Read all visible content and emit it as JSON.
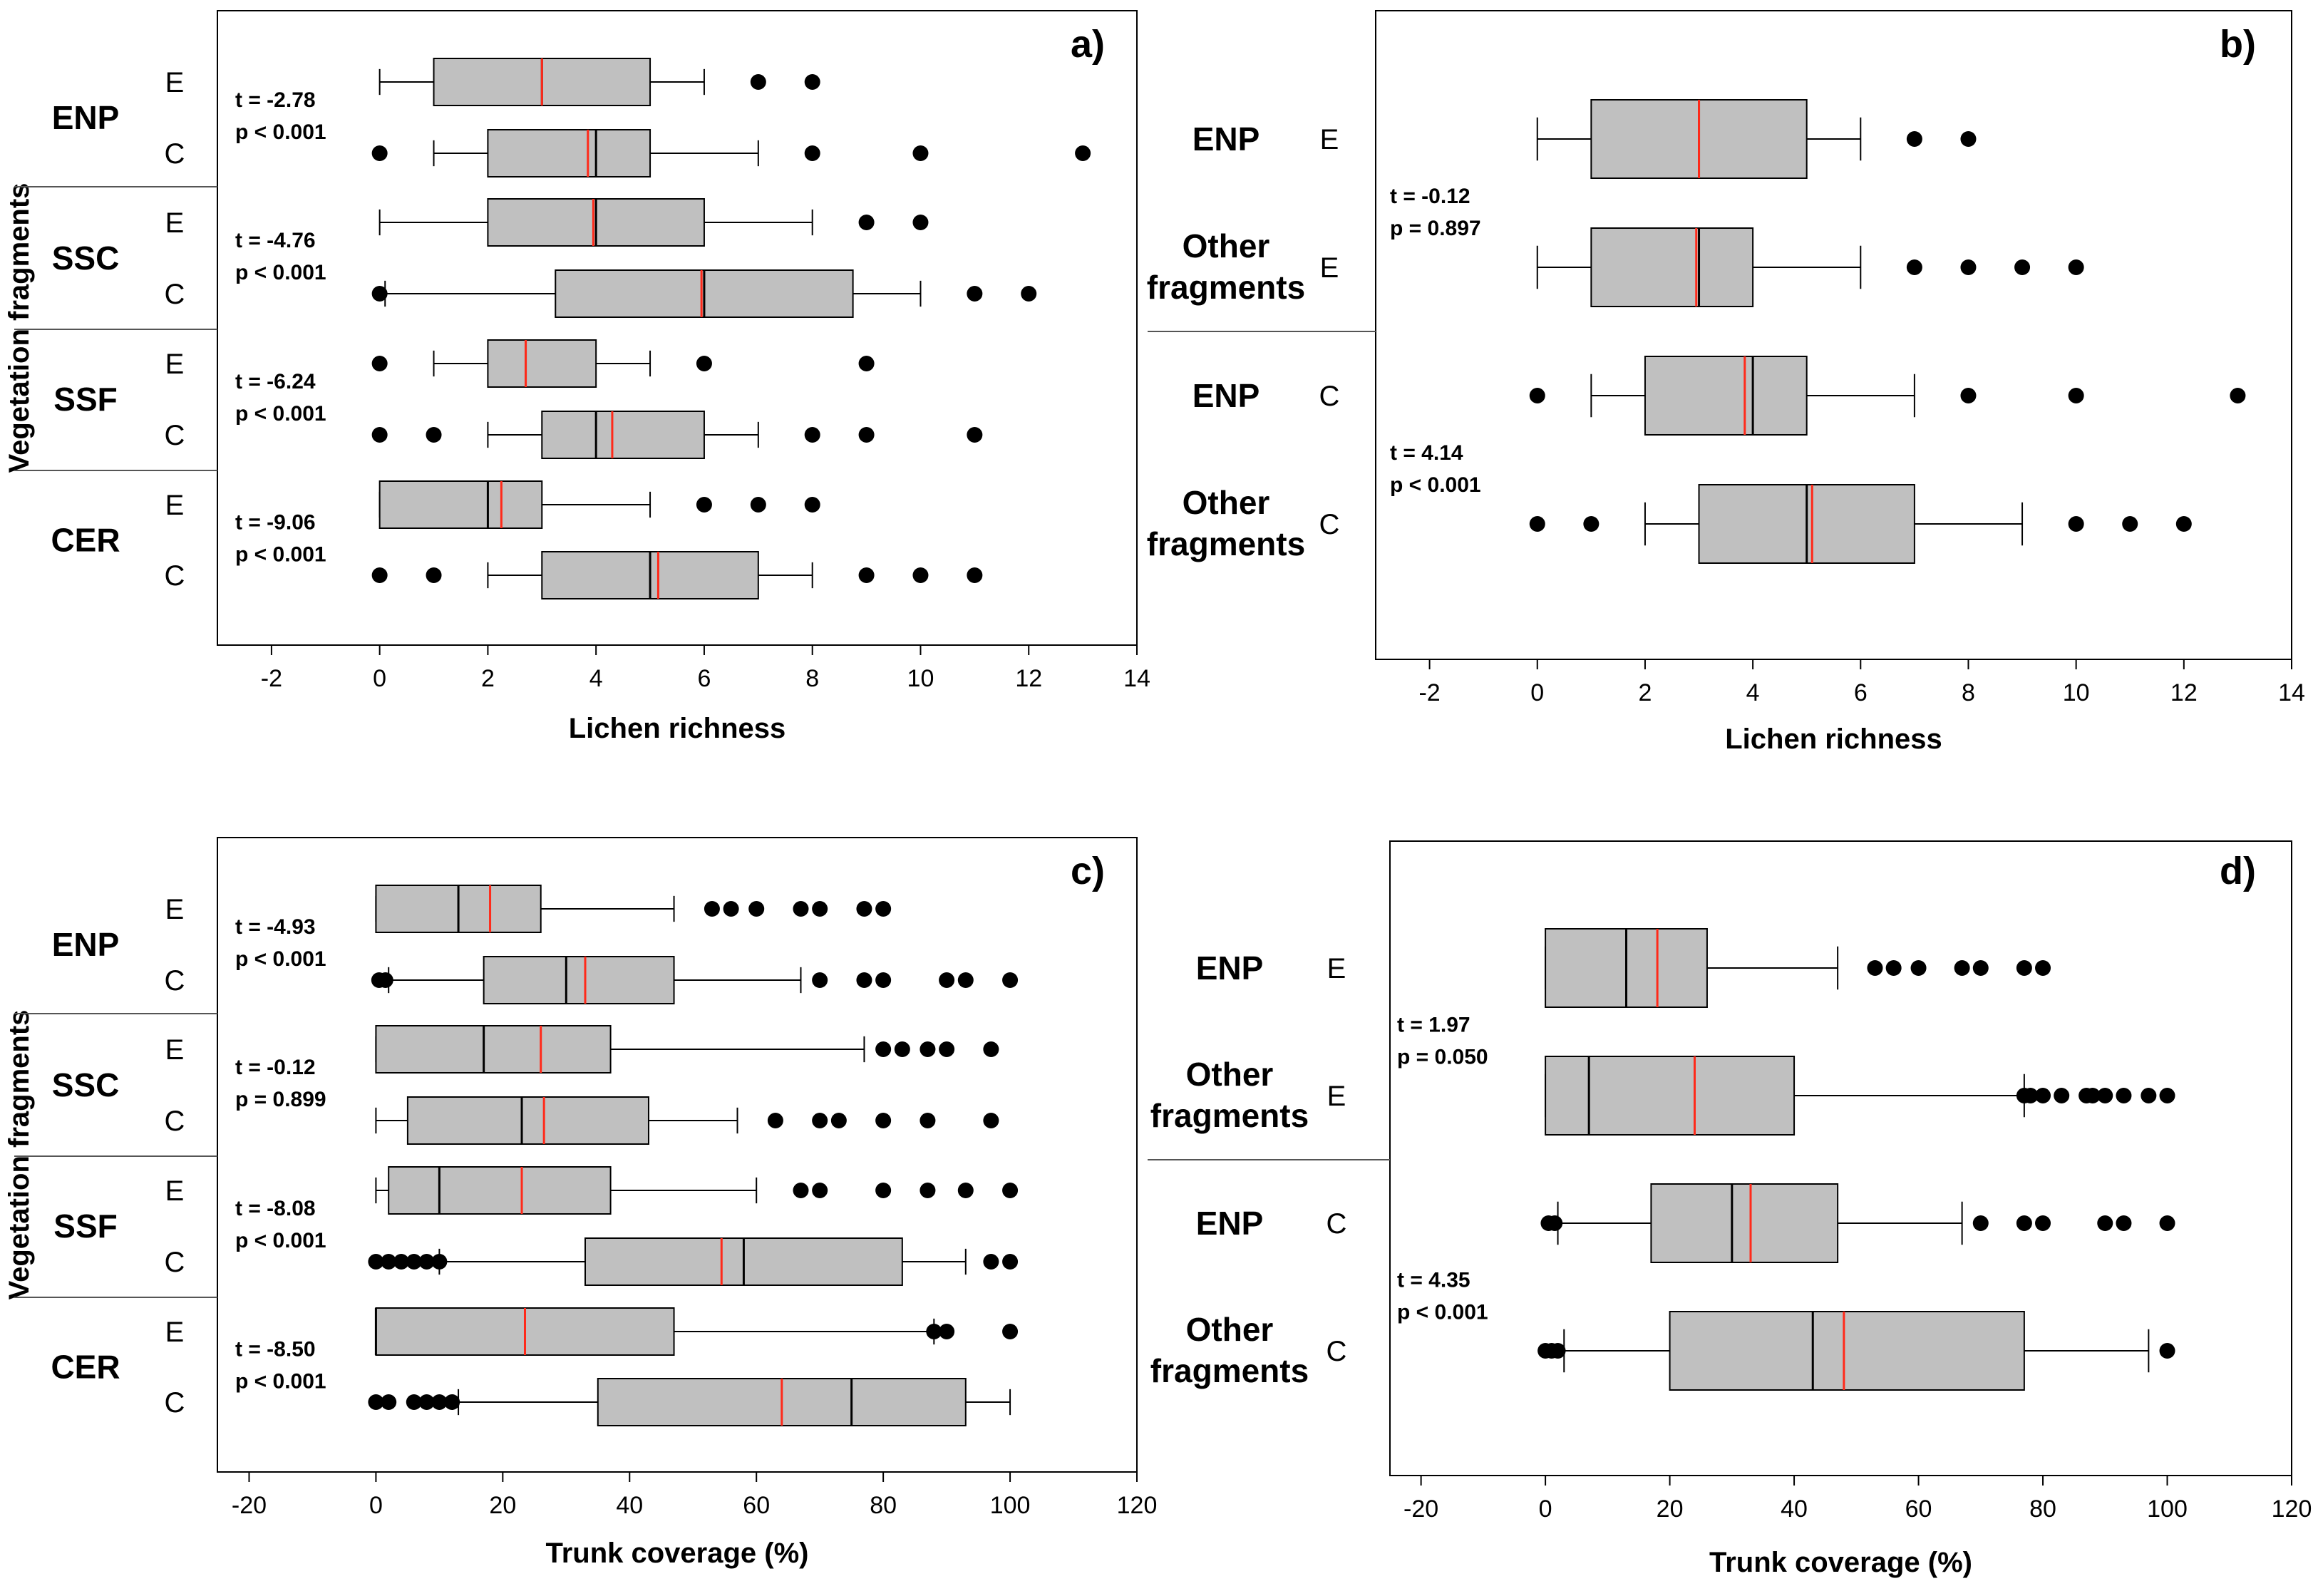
{
  "chart_data": [
    {
      "panel": "a)",
      "type": "boxplot",
      "xlabel": "Lichen richness",
      "ylabel": "Vegetation fragments",
      "xlim": [
        -3,
        14
      ],
      "xticks": [
        "-2",
        "0",
        "2",
        "4",
        "6",
        "8",
        "10",
        "12",
        "14"
      ],
      "rows": [
        {
          "group": "ENP",
          "cat": "E",
          "min": 0,
          "q1": 1,
          "median": 3,
          "mean": 3,
          "q3": 5,
          "max": 6,
          "outliers": [
            7,
            8
          ]
        },
        {
          "group": "ENP",
          "cat": "C",
          "min": 1,
          "q1": 2,
          "median": 4,
          "mean": 3.85,
          "q3": 5,
          "max": 7,
          "outliers": [
            0,
            8,
            10,
            13
          ]
        },
        {
          "group": "SSC",
          "cat": "E",
          "min": 0,
          "q1": 2,
          "median": 4,
          "mean": 3.95,
          "q3": 6,
          "max": 8,
          "outliers": [
            9,
            10
          ]
        },
        {
          "group": "SSC",
          "cat": "C",
          "min": 0.1,
          "q1": 3.25,
          "median": 6,
          "mean": 5.95,
          "q3": 8.75,
          "max": 10,
          "outliers": [
            0,
            11,
            12
          ]
        },
        {
          "group": "SSF",
          "cat": "E",
          "min": 1,
          "q1": 2,
          "median": 2.7,
          "mean": 2.7,
          "q3": 4,
          "max": 5,
          "outliers": [
            0,
            6,
            9
          ]
        },
        {
          "group": "SSF",
          "cat": "C",
          "min": 2,
          "q1": 3,
          "median": 4,
          "mean": 4.3,
          "q3": 6,
          "max": 7,
          "outliers": [
            0,
            1,
            8,
            9,
            11
          ]
        },
        {
          "group": "CER",
          "cat": "E",
          "min": 0,
          "q1": 0,
          "median": 2,
          "mean": 2.25,
          "q3": 3,
          "max": 5,
          "outliers": [
            6,
            7,
            8
          ]
        },
        {
          "group": "CER",
          "cat": "C",
          "min": 2,
          "q1": 3,
          "median": 5,
          "mean": 5.15,
          "q3": 7,
          "max": 8,
          "outliers": [
            0,
            1,
            9,
            10,
            11
          ]
        }
      ],
      "groups": [
        {
          "name": "ENP",
          "t": "t = -2.78",
          "p": "p < 0.001"
        },
        {
          "name": "SSC",
          "t": "t = -4.76",
          "p": "p < 0.001"
        },
        {
          "name": "SSF",
          "t": "t = -6.24",
          "p": "p < 0.001"
        },
        {
          "name": "CER",
          "t": "t = -9.06",
          "p": "p < 0.001"
        }
      ]
    },
    {
      "panel": "b)",
      "type": "boxplot",
      "xlabel": "Lichen richness",
      "xlim": [
        -3,
        14
      ],
      "xticks": [
        "-2",
        "0",
        "2",
        "4",
        "6",
        "8",
        "10",
        "12",
        "14"
      ],
      "rows": [
        {
          "group": "ENP",
          "cat": "E",
          "min": 0,
          "q1": 1,
          "median": 3,
          "mean": 3,
          "q3": 5,
          "max": 6,
          "outliers": [
            7,
            8
          ]
        },
        {
          "group": "Other fragments",
          "cat": "E",
          "min": 0,
          "q1": 1,
          "median": 3,
          "mean": 2.95,
          "q3": 4,
          "max": 6,
          "outliers": [
            7,
            8,
            9,
            10
          ]
        },
        {
          "group": "ENP",
          "cat": "C",
          "min": 1,
          "q1": 2,
          "median": 4,
          "mean": 3.85,
          "q3": 5,
          "max": 7,
          "outliers": [
            0,
            8,
            10,
            13
          ]
        },
        {
          "group": "Other fragments",
          "cat": "C",
          "min": 2,
          "q1": 3,
          "median": 5,
          "mean": 5.1,
          "q3": 7,
          "max": 9,
          "outliers": [
            0,
            1,
            10,
            11,
            12
          ]
        }
      ],
      "groups": [
        {
          "name": "E",
          "t": "t = -0.12",
          "p": "p = 0.897"
        },
        {
          "name": "C",
          "t": "t = 4.14",
          "p": "p < 0.001"
        }
      ]
    },
    {
      "panel": "c)",
      "type": "boxplot",
      "xlabel": "Trunk coverage (%)",
      "ylabel": "Vegetation fragments",
      "xlim": [
        -25,
        120
      ],
      "xticks": [
        "-20",
        "0",
        "20",
        "40",
        "60",
        "80",
        "100",
        "120"
      ],
      "rows": [
        {
          "group": "ENP",
          "cat": "E",
          "min": 0,
          "q1": 0,
          "median": 13,
          "mean": 18,
          "q3": 26,
          "max": 47,
          "outliers": [
            53,
            56,
            60,
            67,
            70,
            77,
            80
          ]
        },
        {
          "group": "ENP",
          "cat": "C",
          "min": 2,
          "q1": 17,
          "median": 30,
          "mean": 33,
          "q3": 47,
          "max": 67,
          "outliers": [
            0.5,
            1.5,
            70,
            77,
            80,
            90,
            93,
            100
          ]
        },
        {
          "group": "SSC",
          "cat": "E",
          "min": 0,
          "q1": 0,
          "median": 17,
          "mean": 26,
          "q3": 37,
          "max": 77,
          "outliers": [
            80,
            83,
            87,
            90,
            97
          ]
        },
        {
          "group": "SSC",
          "cat": "C",
          "min": 0,
          "q1": 5,
          "median": 23,
          "mean": 26.5,
          "q3": 43,
          "max": 57,
          "outliers": [
            63,
            70,
            73,
            80,
            87,
            97
          ]
        },
        {
          "group": "SSF",
          "cat": "E",
          "min": 0,
          "q1": 2,
          "median": 10,
          "mean": 23,
          "q3": 37,
          "max": 60,
          "outliers": [
            67,
            70,
            80,
            87,
            93,
            100
          ]
        },
        {
          "group": "SSF",
          "cat": "C",
          "min": 10,
          "q1": 33,
          "median": 58,
          "mean": 54.5,
          "q3": 83,
          "max": 93,
          "outliers": [
            0,
            2,
            4,
            6,
            8,
            10,
            97,
            100
          ]
        },
        {
          "group": "CER",
          "cat": "E",
          "min": 0,
          "q1": 0,
          "median": 0,
          "mean": 23.5,
          "q3": 47,
          "max": 88,
          "outliers": [
            88,
            90,
            100
          ]
        },
        {
          "group": "CER",
          "cat": "C",
          "min": 13,
          "q1": 35,
          "median": 75,
          "mean": 64,
          "q3": 93,
          "max": 100,
          "outliers": [
            0,
            2,
            6,
            8,
            10,
            12
          ]
        }
      ],
      "groups": [
        {
          "name": "ENP",
          "t": "t = -4.93",
          "p": "p < 0.001"
        },
        {
          "name": "SSC",
          "t": "t = -0.12",
          "p": "p = 0.899"
        },
        {
          "name": "SSF",
          "t": "t = -8.08",
          "p": "p < 0.001"
        },
        {
          "name": "CER",
          "t": "t = -8.50",
          "p": "p < 0.001"
        }
      ]
    },
    {
      "panel": "d)",
      "type": "boxplot",
      "xlabel": "Trunk coverage (%)",
      "xlim": [
        -25,
        120
      ],
      "xticks": [
        "-20",
        "0",
        "20",
        "40",
        "60",
        "80",
        "100",
        "120"
      ],
      "rows": [
        {
          "group": "ENP",
          "cat": "E",
          "min": 0,
          "q1": 0,
          "median": 13,
          "mean": 18,
          "q3": 26,
          "max": 47,
          "outliers": [
            53,
            56,
            60,
            67,
            70,
            77,
            80
          ]
        },
        {
          "group": "Other fragments",
          "cat": "E",
          "min": 0,
          "q1": 0,
          "median": 7,
          "mean": 24,
          "q3": 40,
          "max": 77,
          "outliers": [
            77,
            78,
            80,
            83,
            87,
            88,
            90,
            93,
            97,
            100
          ]
        },
        {
          "group": "ENP",
          "cat": "C",
          "min": 2,
          "q1": 17,
          "median": 30,
          "mean": 33,
          "q3": 47,
          "max": 67,
          "outliers": [
            0.5,
            1.5,
            70,
            77,
            80,
            90,
            93,
            100
          ]
        },
        {
          "group": "Other fragments",
          "cat": "C",
          "min": 3,
          "q1": 20,
          "median": 43,
          "mean": 48,
          "q3": 77,
          "max": 97,
          "outliers": [
            0,
            1,
            2,
            100
          ]
        }
      ],
      "groups": [
        {
          "name": "E",
          "t": "t = 1.97",
          "p": "p = 0.050"
        },
        {
          "name": "C",
          "t": "t = 4.35",
          "p": "p < 0.001"
        }
      ]
    }
  ]
}
